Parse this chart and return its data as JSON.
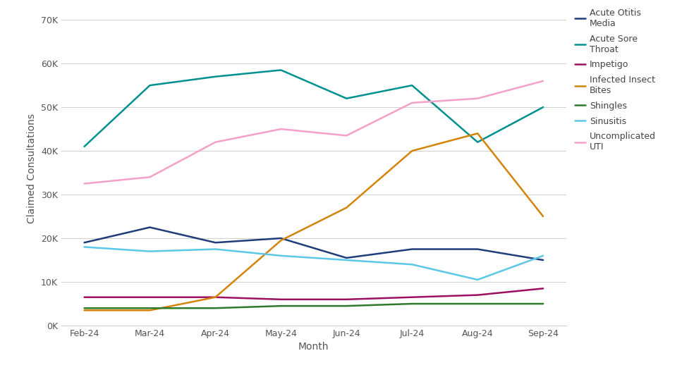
{
  "months": [
    "Feb-24",
    "Mar-24",
    "Apr-24",
    "May-24",
    "Jun-24",
    "Jul-24",
    "Aug-24",
    "Sep-24"
  ],
  "series": {
    "Acute Otitis\nMedia": {
      "values": [
        19000,
        22500,
        19000,
        20000,
        15500,
        17500,
        17500,
        15000
      ],
      "color": "#1f3d7a",
      "linewidth": 1.8
    },
    "Acute Sore\nThroat": {
      "values": [
        41000,
        55000,
        57000,
        58500,
        52000,
        55000,
        42000,
        50000
      ],
      "color": "#009090",
      "linewidth": 1.8
    },
    "Impetigo": {
      "values": [
        6500,
        6500,
        6500,
        6000,
        6000,
        6500,
        7000,
        8500
      ],
      "color": "#9b1060",
      "linewidth": 1.8
    },
    "Infected Insect\nBites": {
      "values": [
        3500,
        3500,
        6500,
        19500,
        27000,
        40000,
        44000,
        25000
      ],
      "color": "#d4840a",
      "linewidth": 1.8
    },
    "Shingles": {
      "values": [
        4000,
        4000,
        4000,
        4500,
        4500,
        5000,
        5000,
        5000
      ],
      "color": "#2d7a2d",
      "linewidth": 1.8
    },
    "Sinusitis": {
      "values": [
        18000,
        17000,
        17500,
        16000,
        15000,
        14000,
        10500,
        16000
      ],
      "color": "#5bc8e8",
      "linewidth": 1.8
    },
    "Uncomplicated\nUTI": {
      "values": [
        32500,
        34000,
        42000,
        45000,
        43500,
        51000,
        52000,
        56000
      ],
      "color": "#f4a0c8",
      "linewidth": 1.8
    }
  },
  "xlabel": "Month",
  "ylabel": "Claimed Consultations",
  "ylim": [
    0,
    72000
  ],
  "yticks": [
    0,
    10000,
    20000,
    30000,
    40000,
    50000,
    60000,
    70000
  ],
  "background_color": "#ffffff",
  "grid_color": "#d0d0d0",
  "axis_fontsize": 10,
  "tick_fontsize": 9,
  "legend_fontsize": 9
}
